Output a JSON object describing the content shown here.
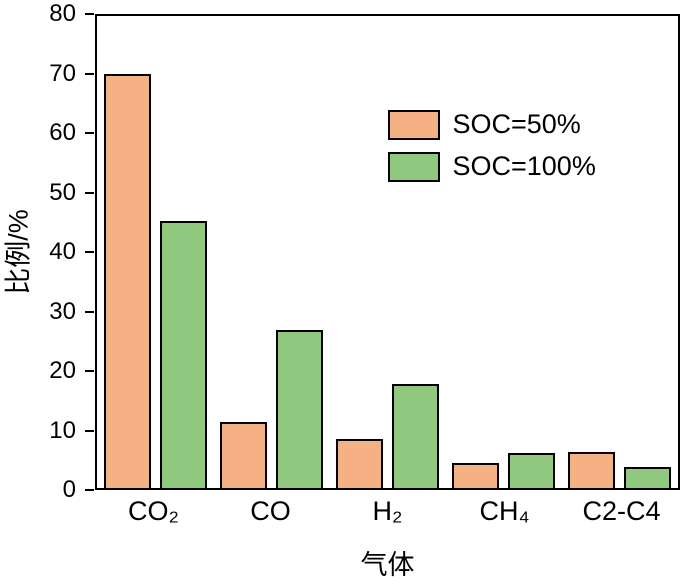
{
  "chart_data": {
    "type": "bar",
    "title": "",
    "xlabel": "气体",
    "ylabel": "比例/%",
    "categories": [
      "CO₂",
      "CO",
      "H₂",
      "CH₄",
      "C2-C4"
    ],
    "series": [
      {
        "name": "SOC=50%",
        "color": "#F5B183",
        "values": [
          70.2,
          11.2,
          8.3,
          4.2,
          6.1
        ]
      },
      {
        "name": "SOC=100%",
        "color": "#8FC87E",
        "values": [
          45.3,
          26.8,
          17.7,
          5.9,
          3.5
        ]
      }
    ],
    "ylim": [
      0,
      80
    ],
    "ytick_step": 10,
    "yticks": [
      0,
      10,
      20,
      30,
      40,
      50,
      60,
      70,
      80
    ],
    "grid": false,
    "legend_position": "upper-center-right",
    "bar_border_color": "#000000",
    "axis_color": "#000000",
    "background_color": "#ffffff"
  }
}
